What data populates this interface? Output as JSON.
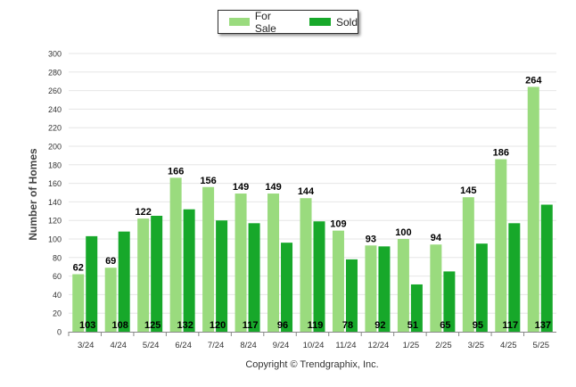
{
  "legend": {
    "for_sale_label": "For Sale",
    "sold_label": "Sold"
  },
  "copyright": "Copyright © Trendgraphix, Inc.",
  "colors": {
    "for_sale": "#9adb7e",
    "sold": "#17a82a",
    "grid": "#e6e6e6",
    "axis": "#888888"
  },
  "chart_data": {
    "type": "bar",
    "title": "",
    "xlabel": "",
    "ylabel": "Number of Homes",
    "ylim": [
      0,
      300
    ],
    "ytick_step": 20,
    "grid": true,
    "legend_position": "top-center",
    "categories": [
      "3/24",
      "4/24",
      "5/24",
      "6/24",
      "7/24",
      "8/24",
      "9/24",
      "10/24",
      "11/24",
      "12/24",
      "1/25",
      "2/25",
      "3/25",
      "4/25",
      "5/25"
    ],
    "series": [
      {
        "name": "For Sale",
        "values": [
          62,
          69,
          122,
          166,
          156,
          149,
          149,
          144,
          109,
          93,
          100,
          94,
          145,
          186,
          264
        ]
      },
      {
        "name": "Sold",
        "values": [
          103,
          108,
          125,
          132,
          120,
          117,
          96,
          119,
          78,
          92,
          51,
          65,
          95,
          117,
          137
        ]
      }
    ]
  }
}
